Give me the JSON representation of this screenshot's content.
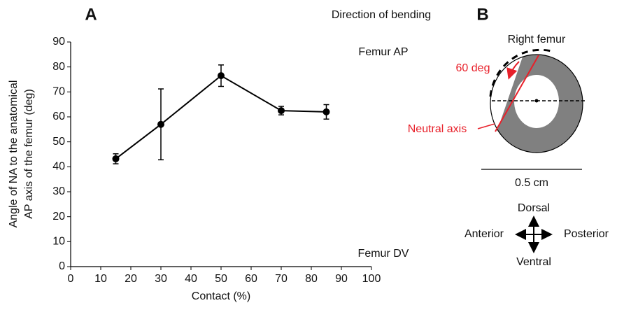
{
  "chart_data": {
    "type": "line",
    "panel_label": "A",
    "x": [
      15,
      30,
      50,
      70,
      85
    ],
    "series": [
      {
        "color": "#000000",
        "values": [
          43.2,
          57,
          76.5,
          62.5,
          62
        ],
        "errors": [
          2,
          14.2,
          4.3,
          1.7,
          2.9
        ]
      }
    ],
    "xlabel": "Contact (%)",
    "ylabel": [
      "Angle of NA to the anatomical",
      "AP axis of the femur (deg)"
    ],
    "xlim": [
      0,
      100
    ],
    "xticks": [
      0,
      10,
      20,
      30,
      40,
      50,
      60,
      70,
      80,
      90,
      100
    ],
    "ylim": [
      0,
      90
    ],
    "yticks": [
      0,
      10,
      20,
      30,
      40,
      50,
      60,
      70,
      80,
      90
    ],
    "annotations": [
      "Direction of bending",
      "Femur AP",
      "Femur DV"
    ]
  },
  "diagram": {
    "panel_label": "B",
    "title": "Right femur",
    "angle_label": "60 deg",
    "neutral_axis_label": "Neutral axis",
    "scale_label": "0.5 cm",
    "directions": {
      "top": "Dorsal",
      "left": "Anterior",
      "right": "Posterior",
      "bottom": "Ventral"
    }
  }
}
